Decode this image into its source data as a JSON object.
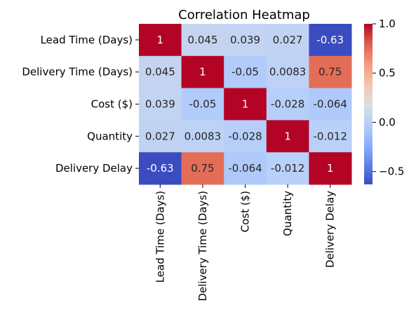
{
  "chart_data": {
    "type": "heatmap",
    "title": "Correlation Heatmap",
    "xlabel": "",
    "ylabel": "",
    "labels": [
      "Lead Time (Days)",
      "Delivery Time (Days)",
      "Cost ($)",
      "Quantity",
      "Delivery Delay"
    ],
    "matrix": [
      [
        1,
        0.045,
        0.039,
        0.027,
        -0.63
      ],
      [
        0.045,
        1,
        -0.05,
        0.0083,
        0.75
      ],
      [
        0.039,
        -0.05,
        1,
        -0.028,
        -0.064
      ],
      [
        0.027,
        0.0083,
        -0.028,
        1,
        -0.012
      ],
      [
        -0.63,
        0.75,
        -0.064,
        -0.012,
        1
      ]
    ],
    "annotations": [
      [
        "1",
        "0.045",
        "0.039",
        "0.027",
        "-0.63"
      ],
      [
        "0.045",
        "1",
        "-0.05",
        "0.0083",
        "0.75"
      ],
      [
        "0.039",
        "-0.05",
        "1",
        "-0.028",
        "-0.064"
      ],
      [
        "0.027",
        "0.0083",
        "-0.028",
        "1",
        "-0.012"
      ],
      [
        "-0.63",
        "0.75",
        "-0.064",
        "-0.012",
        "1"
      ]
    ],
    "colormap": "coolwarm",
    "colorbar": {
      "min": -0.63,
      "max": 1.0,
      "ticks": [
        1.0,
        0.5,
        0.0,
        -0.5
      ],
      "tick_labels": [
        "1.0",
        "0.5",
        "0.0",
        "−0.5"
      ]
    }
  }
}
